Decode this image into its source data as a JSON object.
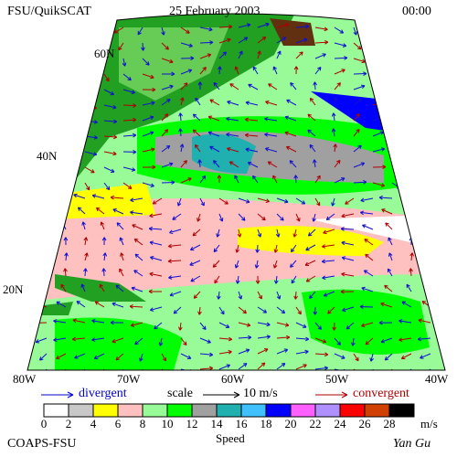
{
  "header": {
    "title": "FSU/QuikSCAT",
    "date": "25 February 2003",
    "time": "00:00"
  },
  "map": {
    "lat_labels": [
      "60N",
      "40N",
      "20N"
    ],
    "lon_labels": [
      "80W",
      "70W",
      "60W",
      "50W",
      "40W"
    ]
  },
  "legend": {
    "divergent": "divergent",
    "scale": "scale",
    "scale_value": "10 m/s",
    "convergent": "convergent",
    "speed_label": "Speed",
    "unit": "m/s",
    "ticks": [
      0,
      2,
      4,
      6,
      8,
      10,
      12,
      14,
      16,
      18,
      20,
      22,
      24,
      26,
      28
    ],
    "colors": [
      "#ffffff",
      "#c8c8c8",
      "#ffff00",
      "#ffc0c0",
      "#98fb98",
      "#00ff00",
      "#a0a0a0",
      "#20b0b0",
      "#40c0ff",
      "#0000ff",
      "#ff60ff",
      "#b090ff",
      "#ff0000",
      "#d04000",
      "#000000"
    ]
  },
  "footer": {
    "credit": "COAPS-FSU",
    "author": "Yan Gu"
  }
}
